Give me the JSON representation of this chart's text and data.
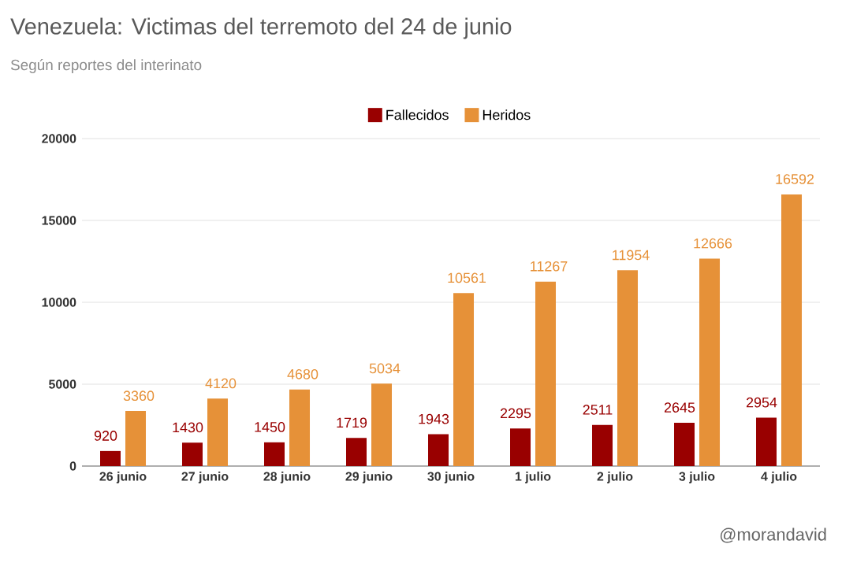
{
  "chart_data": {
    "type": "bar",
    "title": "Venezuela: Victimas del terremoto  del 24 de junio",
    "subtitle": "Según reportes del interinato",
    "categories": [
      "26 junio",
      "27 junio",
      "28 junio",
      "29 junio",
      "30 junio",
      "1 julio",
      "2 julio",
      "3 julio",
      "4 julio"
    ],
    "series": [
      {
        "name": "Fallecidos",
        "color": "#990000",
        "values": [
          920,
          1430,
          1450,
          1719,
          1943,
          2295,
          2511,
          2645,
          2954
        ]
      },
      {
        "name": "Heridos",
        "color": "#e69138",
        "values": [
          3360,
          4120,
          4680,
          5034,
          10561,
          11267,
          11954,
          12666,
          16592
        ]
      }
    ],
    "ylim": [
      0,
      20000
    ],
    "yticks": [
      0,
      5000,
      10000,
      15000,
      20000
    ],
    "grid": "y",
    "legend": "top",
    "data_labels": true,
    "annotations": [
      "@morandavid"
    ]
  }
}
